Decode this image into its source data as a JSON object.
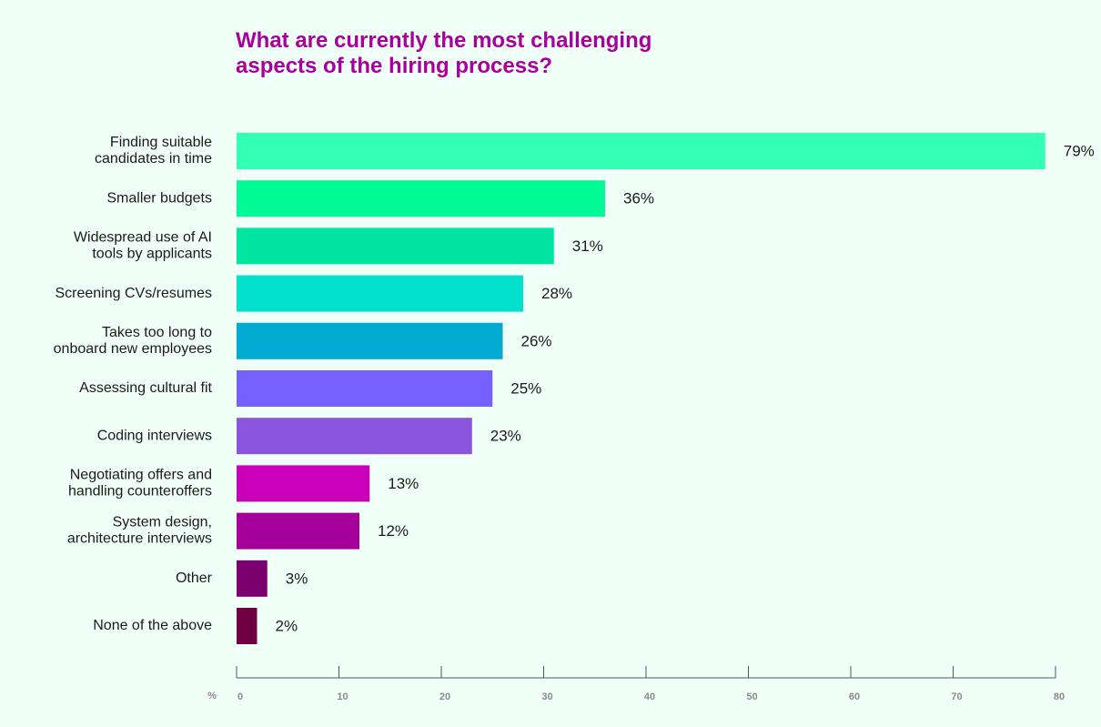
{
  "chart_data": {
    "type": "barh",
    "title": "What are currently the most challenging\naspects of the hiring process?",
    "xlabel": "%",
    "categories": [
      "Finding suitable\ncandidates in time",
      "Smaller budgets",
      "Widespread use of AI\ntools by applicants",
      "Screening CVs/resumes",
      "Takes too long to\nonboard new employees",
      "Assessing cultural fit",
      "Coding interviews",
      "Negotiating offers and\nhandling counteroffers",
      "System design,\narchitecture interviews",
      "Other",
      "None of the above"
    ],
    "values": [
      79,
      36,
      31,
      28,
      26,
      25,
      23,
      13,
      12,
      3,
      2
    ],
    "value_labels": [
      "79%",
      "36%",
      "31%",
      "28%",
      "26%",
      "25%",
      "23%",
      "13%",
      "12%",
      "3%",
      "2%"
    ],
    "colors": [
      "#33ffb5",
      "#00fa95",
      "#00e6a0",
      "#00e0cc",
      "#00aad0",
      "#7660ff",
      "#8a55dc",
      "#c800b8",
      "#a6009a",
      "#7a0070",
      "#6e0042"
    ],
    "xlim": [
      0,
      80
    ],
    "xticks": [
      0,
      10,
      20,
      30,
      40,
      50,
      60,
      70,
      80
    ]
  }
}
